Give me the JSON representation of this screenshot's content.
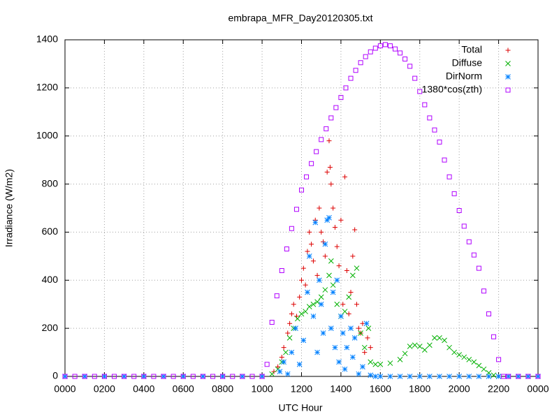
{
  "chart_data": {
    "type": "scatter",
    "title": "embrapa_MFR_Day20120305.txt",
    "x_label": "UTC Hour",
    "y_label": "Irradiance (W/m2)",
    "xlim": [
      0,
      24
    ],
    "ylim": [
      0,
      1400
    ],
    "xticks": [
      {
        "value": 0,
        "label": "0000"
      },
      {
        "value": 2,
        "label": "0200"
      },
      {
        "value": 4,
        "label": "0400"
      },
      {
        "value": 6,
        "label": "0600"
      },
      {
        "value": 8,
        "label": "0800"
      },
      {
        "value": 10,
        "label": "1000"
      },
      {
        "value": 12,
        "label": "1200"
      },
      {
        "value": 14,
        "label": "1400"
      },
      {
        "value": 16,
        "label": "1600"
      },
      {
        "value": 18,
        "label": "1800"
      },
      {
        "value": 20,
        "label": "2000"
      },
      {
        "value": 22,
        "label": "2200"
      },
      {
        "value": 24,
        "label": "0000"
      }
    ],
    "yticks": [
      0,
      200,
      400,
      600,
      800,
      1000,
      1200,
      1400
    ],
    "grid": true,
    "legend": "top-right",
    "series": [
      {
        "name": "Total",
        "color": "#dd0000",
        "marker": "plus",
        "x": [
          0,
          2,
          4,
          6,
          8,
          10,
          10.6,
          10.8,
          11.0,
          11.1,
          11.3,
          11.4,
          11.5,
          11.6,
          11.75,
          11.9,
          12.0,
          12.1,
          12.2,
          12.3,
          12.4,
          12.5,
          12.6,
          12.7,
          12.8,
          12.9,
          13.0,
          13.1,
          13.2,
          13.3,
          13.4,
          13.45,
          13.5,
          13.6,
          13.7,
          13.8,
          13.9,
          14.0,
          14.1,
          14.2,
          14.3,
          14.4,
          14.5,
          14.6,
          14.7,
          14.8,
          14.9,
          15.0,
          15.1,
          15.2,
          15.35,
          15.5
        ],
        "values": [
          0,
          0,
          0,
          0,
          0,
          0,
          20,
          40,
          80,
          120,
          180,
          220,
          260,
          300,
          250,
          330,
          400,
          450,
          380,
          520,
          600,
          550,
          480,
          650,
          420,
          700,
          600,
          560,
          500,
          850,
          980,
          870,
          800,
          700,
          620,
          540,
          460,
          650,
          300,
          830,
          440,
          260,
          350,
          500,
          610,
          300,
          200,
          180,
          220,
          100,
          160,
          120
        ]
      },
      {
        "name": "Diffuse",
        "color": "#00b000",
        "marker": "cross",
        "x": [
          10.5,
          10.8,
          11.0,
          11.2,
          11.4,
          11.6,
          11.8,
          12.0,
          12.2,
          12.4,
          12.6,
          12.8,
          13.0,
          13.2,
          13.4,
          13.5,
          13.6,
          13.8,
          14.0,
          14.2,
          14.4,
          14.6,
          14.8,
          15.0,
          15.2,
          15.4,
          15.5,
          15.75,
          16,
          16.5,
          17,
          17.25,
          17.5,
          17.75,
          18,
          18.25,
          18.5,
          18.75,
          19,
          19.25,
          19.5,
          19.75,
          20,
          20.25,
          20.5,
          20.75,
          21,
          21.25,
          21.5,
          21.75,
          22
        ],
        "values": [
          10,
          30,
          60,
          100,
          160,
          200,
          240,
          260,
          270,
          290,
          300,
          310,
          330,
          360,
          420,
          480,
          380,
          300,
          250,
          270,
          330,
          420,
          450,
          180,
          120,
          200,
          60,
          50,
          50,
          55,
          70,
          95,
          125,
          130,
          125,
          110,
          130,
          160,
          160,
          150,
          120,
          100,
          90,
          80,
          70,
          60,
          45,
          30,
          15,
          5,
          0
        ]
      },
      {
        "name": "DirNorm",
        "color": "#0080ff",
        "marker": "star",
        "x": [
          0,
          1,
          2,
          3,
          4,
          5,
          6,
          7,
          8,
          9,
          10,
          10.9,
          11.1,
          11.3,
          11.5,
          11.7,
          11.9,
          12.1,
          12.3,
          12.4,
          12.6,
          12.7,
          12.8,
          12.9,
          13.0,
          13.1,
          13.2,
          13.3,
          13.4,
          13.5,
          13.6,
          13.7,
          13.8,
          13.9,
          14.0,
          14.1,
          14.2,
          14.3,
          14.5,
          14.6,
          14.7,
          14.9,
          15.1,
          15.3,
          15.5,
          15.75,
          16,
          16.5,
          17,
          17.5,
          18,
          18.5,
          19,
          19.5,
          20,
          20.5,
          21,
          21.5,
          22,
          22.5,
          23,
          23.5,
          24
        ],
        "values": [
          0,
          0,
          0,
          0,
          0,
          0,
          0,
          0,
          0,
          0,
          0,
          20,
          60,
          10,
          100,
          200,
          50,
          150,
          350,
          500,
          250,
          640,
          100,
          400,
          300,
          180,
          550,
          650,
          660,
          200,
          350,
          120,
          400,
          60,
          250,
          180,
          30,
          120,
          200,
          80,
          160,
          10,
          40,
          220,
          5,
          0,
          0,
          0,
          0,
          0,
          0,
          0,
          0,
          0,
          0,
          0,
          0,
          0,
          0,
          0,
          0,
          0,
          0
        ]
      },
      {
        "name": "1380*cos(zth)",
        "color": "#b000ff",
        "marker": "square",
        "x": [
          0,
          0.5,
          1,
          1.5,
          2,
          2.5,
          3,
          3.5,
          4,
          4.5,
          5,
          5.5,
          6,
          6.5,
          7,
          7.5,
          8,
          8.5,
          9,
          9.5,
          10,
          10.25,
          10.5,
          10.75,
          11,
          11.25,
          11.5,
          11.75,
          12,
          12.25,
          12.5,
          12.75,
          13,
          13.25,
          13.5,
          13.75,
          14,
          14.25,
          14.5,
          14.75,
          15,
          15.25,
          15.5,
          15.75,
          16,
          16.25,
          16.5,
          16.75,
          17,
          17.25,
          17.5,
          17.75,
          18,
          18.25,
          18.5,
          18.75,
          19,
          19.25,
          19.5,
          19.75,
          20,
          20.25,
          20.5,
          20.75,
          21,
          21.25,
          21.5,
          21.75,
          22,
          22.25,
          22.5,
          23,
          23.5,
          24
        ],
        "values": [
          0,
          0,
          0,
          0,
          0,
          0,
          0,
          0,
          0,
          0,
          0,
          0,
          0,
          0,
          0,
          0,
          0,
          0,
          0,
          0,
          0,
          50,
          225,
          335,
          440,
          530,
          615,
          695,
          775,
          830,
          885,
          935,
          985,
          1030,
          1075,
          1118,
          1160,
          1200,
          1240,
          1273,
          1305,
          1330,
          1350,
          1365,
          1375,
          1380,
          1375,
          1362,
          1345,
          1320,
          1290,
          1240,
          1185,
          1130,
          1075,
          1025,
          975,
          900,
          830,
          760,
          690,
          625,
          560,
          505,
          450,
          355,
          260,
          165,
          70,
          0,
          0,
          0,
          0,
          0
        ]
      }
    ]
  }
}
